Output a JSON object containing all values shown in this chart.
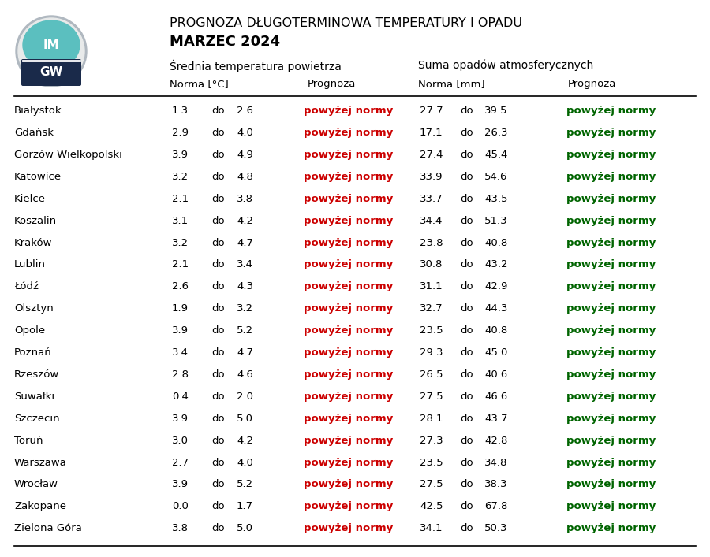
{
  "title_line1": "PROGNOZA DŁUGOTERMINOWA TEMPERATURY I OPADU",
  "title_line2": "MARZEC 2024",
  "header_temp": "Średnia temperatura powietrza",
  "header_precip": "Suma opadów atmosferycznych",
  "subheader_temp_norma": "Norma [°C]",
  "subheader_temp_prog": "Prognoza",
  "subheader_precip_norma": "Norma [mm]",
  "subheader_precip_prog": "Prognoza",
  "cities": [
    "Białystok",
    "Gdańsk",
    "Gorzów Wielkopolski",
    "Katowice",
    "Kielce",
    "Koszalin",
    "Kraków",
    "Lublin",
    "Łódź",
    "Olsztyn",
    "Opole",
    "Poznań",
    "Rzeszów",
    "Suwałki",
    "Szczecin",
    "Toruń",
    "Warszawa",
    "Wrocław",
    "Zakopane",
    "Zielona Góra"
  ],
  "temp_norma_low": [
    1.3,
    2.9,
    3.9,
    3.2,
    2.1,
    3.1,
    3.2,
    2.1,
    2.6,
    1.9,
    3.9,
    3.4,
    2.8,
    0.4,
    3.9,
    3.0,
    2.7,
    3.9,
    0.0,
    3.8
  ],
  "temp_norma_high": [
    2.6,
    4.0,
    4.9,
    4.8,
    3.8,
    4.2,
    4.7,
    3.4,
    4.3,
    3.2,
    5.2,
    4.7,
    4.6,
    2.0,
    5.0,
    4.2,
    4.0,
    5.2,
    1.7,
    5.0
  ],
  "precip_norma_low": [
    27.7,
    17.1,
    27.4,
    33.9,
    33.7,
    34.4,
    23.8,
    30.8,
    31.1,
    32.7,
    23.5,
    29.3,
    26.5,
    27.5,
    28.1,
    27.3,
    23.5,
    27.5,
    42.5,
    34.1
  ],
  "precip_norma_high": [
    39.5,
    26.3,
    45.4,
    54.6,
    43.5,
    51.3,
    40.8,
    43.2,
    42.9,
    44.3,
    40.8,
    45.0,
    40.6,
    46.6,
    43.7,
    42.8,
    34.8,
    38.3,
    67.8,
    50.3
  ],
  "temp_prognoza": "powyżej normy",
  "precip_prognoza": "powyżej normy",
  "temp_color": "#cc0000",
  "precip_color": "#006400",
  "bg_color": "#ffffff",
  "text_color": "#000000",
  "figsize": [
    9.0,
    7.07
  ],
  "dpi": 100
}
